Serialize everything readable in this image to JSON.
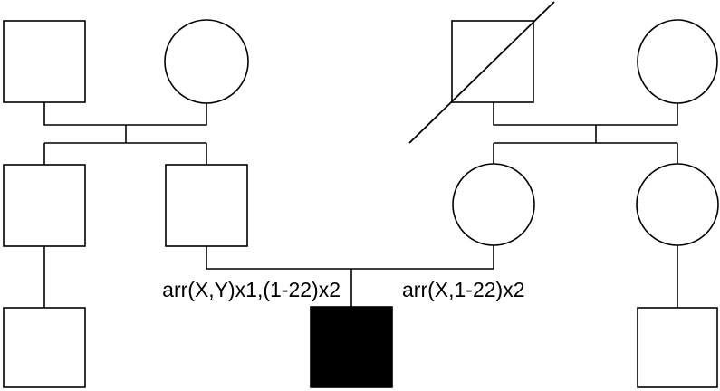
{
  "annotations": {
    "left": "arr(X,Y)x1,(1-22)x2",
    "right": "arr(X,1-22)x2"
  },
  "individuals": [
    {
      "id": "paternal-grandfather",
      "sex": "male",
      "affected": false,
      "deceased": false
    },
    {
      "id": "paternal-grandmother",
      "sex": "female",
      "affected": false,
      "deceased": false
    },
    {
      "id": "maternal-grandfather",
      "sex": "male",
      "affected": false,
      "deceased": true
    },
    {
      "id": "maternal-grandmother",
      "sex": "female",
      "affected": false,
      "deceased": false
    },
    {
      "id": "paternal-uncle",
      "sex": "male",
      "affected": false,
      "deceased": false
    },
    {
      "id": "father",
      "sex": "male",
      "affected": false,
      "deceased": false
    },
    {
      "id": "mother",
      "sex": "female",
      "affected": false,
      "deceased": false
    },
    {
      "id": "maternal-aunt",
      "sex": "female",
      "affected": false,
      "deceased": false
    },
    {
      "id": "paternal-cousin",
      "sex": "male",
      "affected": false,
      "deceased": false
    },
    {
      "id": "proband",
      "sex": "male",
      "affected": true,
      "deceased": false
    },
    {
      "id": "maternal-cousin",
      "sex": "male",
      "affected": false,
      "deceased": false
    }
  ]
}
